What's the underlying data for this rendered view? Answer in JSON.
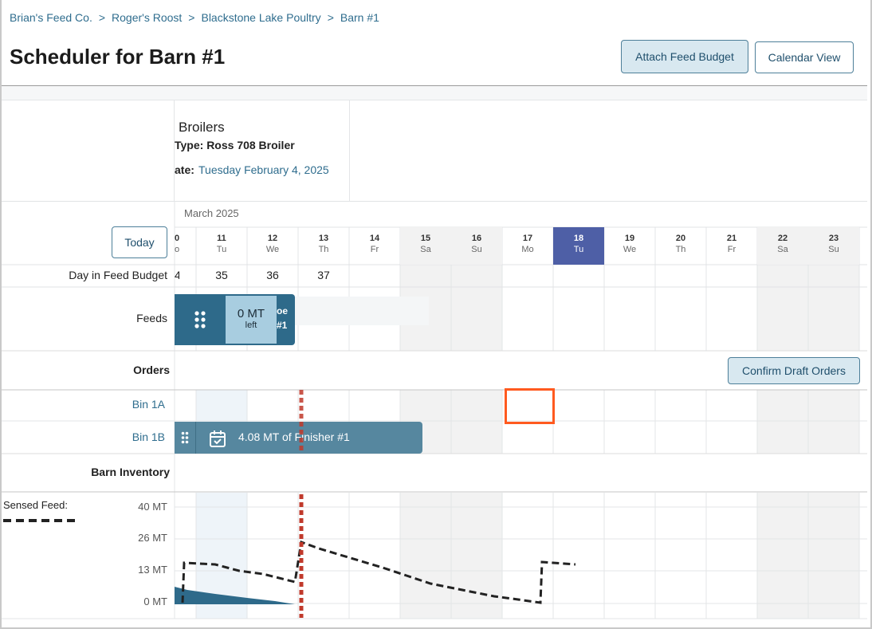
{
  "breadcrumb": [
    "Brian's Feed Co.",
    "Roger's Roost",
    "Blackstone Lake Poultry",
    "Barn #1"
  ],
  "breadcrumb_separator": ">",
  "page_title": "Scheduler for Barn #1",
  "buttons": {
    "attach_feed_budget": "Attach Feed Budget",
    "calendar_view": "Calendar View",
    "today": "Today",
    "confirm_draft_orders": "Confirm Draft Orders"
  },
  "flock": {
    "title": "Broilers",
    "type_text": "Type: Ross 708 Broiler",
    "date_label": "ate:",
    "date_value": "Tuesday February 4, 2025"
  },
  "calendar": {
    "month": "March 2025",
    "partial_day": {
      "num": "0",
      "name": "o"
    },
    "days": [
      {
        "num": "11",
        "name": "Tu",
        "weekend": false,
        "today": false
      },
      {
        "num": "12",
        "name": "We",
        "weekend": false,
        "today": false
      },
      {
        "num": "13",
        "name": "Th",
        "weekend": false,
        "today": false
      },
      {
        "num": "14",
        "name": "Fr",
        "weekend": false,
        "today": false
      },
      {
        "num": "15",
        "name": "Sa",
        "weekend": true,
        "today": false
      },
      {
        "num": "16",
        "name": "Su",
        "weekend": true,
        "today": false
      },
      {
        "num": "17",
        "name": "Mo",
        "weekend": false,
        "today": false
      },
      {
        "num": "18",
        "name": "Tu",
        "weekend": false,
        "today": true
      },
      {
        "num": "19",
        "name": "We",
        "weekend": false,
        "today": false
      },
      {
        "num": "20",
        "name": "Th",
        "weekend": false,
        "today": false
      },
      {
        "num": "21",
        "name": "Fr",
        "weekend": false,
        "today": false
      },
      {
        "num": "22",
        "name": "Sa",
        "weekend": true,
        "today": false
      },
      {
        "num": "23",
        "name": "Su",
        "weekend": true,
        "today": false
      }
    ]
  },
  "rows": {
    "day_in_feed_budget": "Day in Feed Budget",
    "feeds": "Feeds",
    "orders": "Orders",
    "bin_1a": "Bin 1A",
    "bin_1b": "Bin 1B",
    "barn_inventory": "Barn Inventory"
  },
  "day_in_feed_budget_values": {
    "partial": "4",
    "values": [
      "35",
      "36",
      "37"
    ]
  },
  "feed_block": {
    "amount": "0 MT",
    "left_label": "left",
    "tail_line1": "oe",
    "tail_line2": "#1"
  },
  "order_block": {
    "text": "4.08 MT of Finisher #1"
  },
  "inventory": {
    "legend_label": "Sensed Feed:",
    "y_ticks": [
      "40 MT",
      "26 MT",
      "13 MT",
      "0 MT"
    ]
  },
  "colors": {
    "accent": "#2e6a8a",
    "today": "#4e5fa6",
    "current_time_line": "#c0392b",
    "highlight": "#ff5a1f"
  },
  "icons": {
    "drag_handle": "drag-handle-icon",
    "calendar_check": "calendar-check-icon"
  }
}
